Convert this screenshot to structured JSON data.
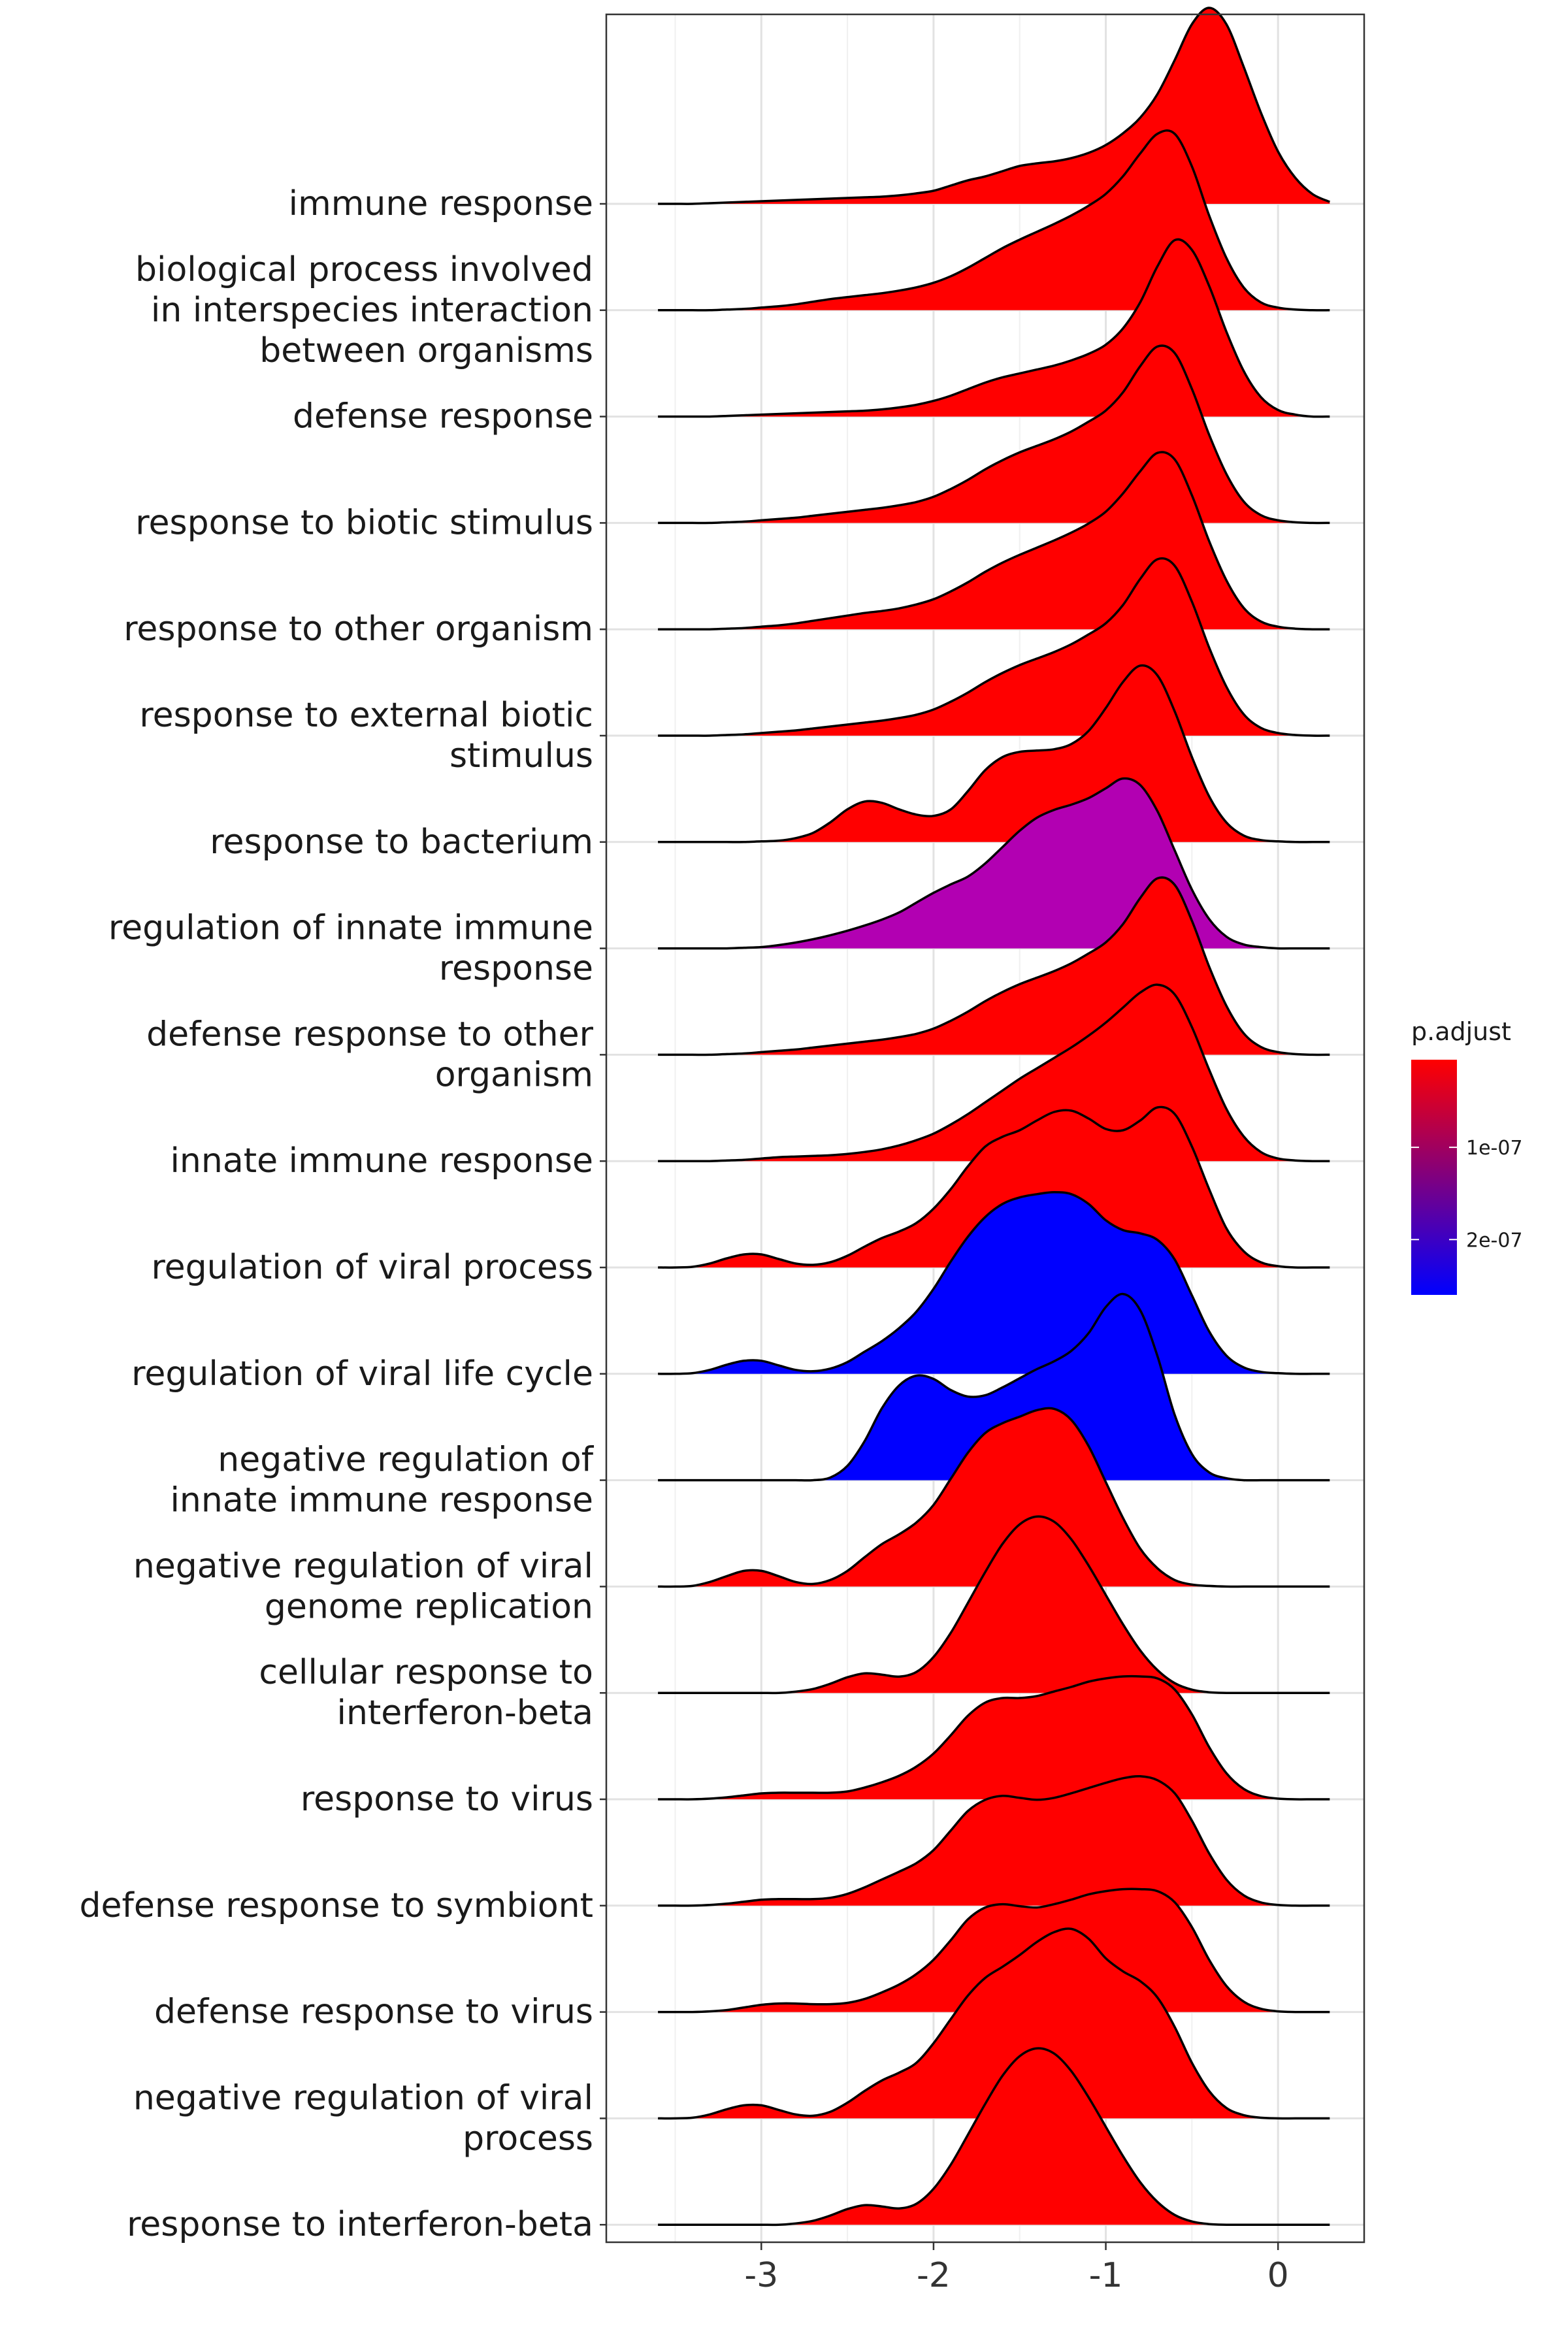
{
  "chart_data": {
    "type": "ridgeline",
    "title": "",
    "xlabel": "",
    "ylabel": "",
    "xlim": [
      -3.9,
      0.5
    ],
    "x_ticks": [
      -3,
      -2,
      -1,
      0
    ],
    "x_tick_labels": [
      "-3",
      "-2",
      "-1",
      "0"
    ],
    "grid": true,
    "legend": {
      "title": "p.adjust",
      "position": "right",
      "type": "gradient",
      "colors": [
        "#FF0000",
        "#0000FF"
      ],
      "ticks": [
        1e-07,
        2e-07
      ],
      "tick_labels": [
        "1e-07",
        "2e-07"
      ],
      "range": [
        5e-09,
        2.6e-07
      ]
    },
    "categories": [
      "immune response",
      "biological process involved\nin interspecies interaction\nbetween organisms",
      "defense response",
      "response to biotic stimulus",
      "response to other organism",
      "response to external biotic\nstimulus",
      "response to bacterium",
      "regulation of innate immune\nresponse",
      "defense response to other\norganism",
      "innate immune response",
      "regulation of viral process",
      "regulation of viral life cycle",
      "negative regulation of\ninnate immune response",
      "negative regulation of viral\ngenome replication",
      "cellular response to\ninterferon-beta",
      "response to virus",
      "defense response to symbiont",
      "defense response to virus",
      "negative regulation of viral\nprocess",
      "response to interferon-beta"
    ],
    "x_grid": [
      -3.6,
      -3.5,
      -3.4,
      -3.3,
      -3.2,
      -3.1,
      -3.0,
      -2.9,
      -2.8,
      -2.7,
      -2.6,
      -2.5,
      -2.4,
      -2.3,
      -2.2,
      -2.1,
      -2.0,
      -1.9,
      -1.8,
      -1.7,
      -1.6,
      -1.5,
      -1.4,
      -1.3,
      -1.2,
      -1.1,
      -1.0,
      -0.9,
      -0.8,
      -0.7,
      -0.6,
      -0.5,
      -0.4,
      -0.3,
      -0.2,
      -0.1,
      0.0,
      0.1,
      0.2,
      0.3
    ],
    "series": [
      {
        "name": "immune response",
        "p_adjust": 1e-08,
        "color": "#FF0000",
        "density": [
          0,
          0,
          0,
          0.01,
          0.02,
          0.03,
          0.04,
          0.05,
          0.06,
          0.07,
          0.08,
          0.09,
          0.1,
          0.11,
          0.13,
          0.16,
          0.2,
          0.28,
          0.36,
          0.42,
          0.5,
          0.58,
          0.62,
          0.65,
          0.7,
          0.78,
          0.9,
          1.08,
          1.32,
          1.68,
          2.2,
          2.75,
          3.0,
          2.75,
          2.1,
          1.4,
          0.8,
          0.4,
          0.15,
          0.03
        ]
      },
      {
        "name": "biological process involved\nin interspecies interaction\nbetween organisms",
        "p_adjust": 1e-08,
        "color": "#FF0000",
        "density": [
          0,
          0,
          0,
          0,
          0.01,
          0.02,
          0.04,
          0.06,
          0.09,
          0.13,
          0.17,
          0.2,
          0.23,
          0.26,
          0.3,
          0.35,
          0.42,
          0.52,
          0.65,
          0.8,
          0.95,
          1.08,
          1.2,
          1.32,
          1.45,
          1.6,
          1.78,
          2.05,
          2.4,
          2.7,
          2.7,
          2.2,
          1.45,
          0.8,
          0.35,
          0.12,
          0.04,
          0.01,
          0,
          0
        ]
      },
      {
        "name": "defense response",
        "p_adjust": 1e-08,
        "color": "#FF0000",
        "density": [
          0,
          0,
          0,
          0,
          0.01,
          0.02,
          0.03,
          0.04,
          0.05,
          0.06,
          0.07,
          0.08,
          0.09,
          0.11,
          0.14,
          0.18,
          0.24,
          0.32,
          0.42,
          0.52,
          0.6,
          0.66,
          0.72,
          0.78,
          0.86,
          0.96,
          1.1,
          1.35,
          1.75,
          2.3,
          2.7,
          2.55,
          2.0,
          1.3,
          0.7,
          0.3,
          0.1,
          0.03,
          0,
          0
        ]
      },
      {
        "name": "response to biotic stimulus",
        "p_adjust": 1e-08,
        "color": "#FF0000",
        "density": [
          0,
          0,
          0,
          0,
          0.01,
          0.02,
          0.04,
          0.06,
          0.08,
          0.11,
          0.14,
          0.17,
          0.2,
          0.23,
          0.27,
          0.32,
          0.4,
          0.52,
          0.66,
          0.82,
          0.96,
          1.08,
          1.18,
          1.28,
          1.4,
          1.55,
          1.72,
          2.0,
          2.4,
          2.7,
          2.6,
          2.05,
          1.35,
          0.75,
          0.33,
          0.12,
          0.04,
          0.01,
          0,
          0
        ]
      },
      {
        "name": "response to other organism",
        "p_adjust": 1e-08,
        "color": "#FF0000",
        "density": [
          0,
          0,
          0,
          0,
          0.01,
          0.02,
          0.04,
          0.06,
          0.09,
          0.13,
          0.17,
          0.21,
          0.25,
          0.28,
          0.32,
          0.38,
          0.46,
          0.58,
          0.72,
          0.88,
          1.02,
          1.14,
          1.25,
          1.36,
          1.48,
          1.62,
          1.8,
          2.08,
          2.42,
          2.7,
          2.6,
          2.05,
          1.35,
          0.75,
          0.33,
          0.12,
          0.04,
          0.01,
          0,
          0
        ]
      },
      {
        "name": "response to external biotic\nstimulus",
        "p_adjust": 1e-08,
        "color": "#FF0000",
        "density": [
          0,
          0,
          0,
          0,
          0.01,
          0.02,
          0.04,
          0.06,
          0.08,
          0.11,
          0.14,
          0.17,
          0.2,
          0.23,
          0.27,
          0.32,
          0.4,
          0.52,
          0.66,
          0.82,
          0.96,
          1.08,
          1.18,
          1.28,
          1.4,
          1.55,
          1.72,
          2.0,
          2.4,
          2.7,
          2.6,
          2.05,
          1.35,
          0.75,
          0.33,
          0.12,
          0.04,
          0.01,
          0,
          0
        ]
      },
      {
        "name": "response to bacterium",
        "p_adjust": 1e-08,
        "color": "#FF0000",
        "density": [
          0,
          0,
          0,
          0,
          0,
          0,
          0.01,
          0.02,
          0.06,
          0.14,
          0.3,
          0.5,
          0.62,
          0.6,
          0.5,
          0.42,
          0.4,
          0.5,
          0.78,
          1.1,
          1.3,
          1.38,
          1.4,
          1.42,
          1.5,
          1.7,
          2.05,
          2.45,
          2.7,
          2.55,
          2.0,
          1.3,
          0.7,
          0.3,
          0.1,
          0.03,
          0.01,
          0,
          0,
          0
        ]
      },
      {
        "name": "regulation of innate immune\nresponse",
        "p_adjust": 1.6e-07,
        "color": "#B200B2",
        "density": [
          0,
          0,
          0,
          0,
          0,
          0.01,
          0.02,
          0.05,
          0.09,
          0.14,
          0.2,
          0.27,
          0.35,
          0.44,
          0.55,
          0.7,
          0.85,
          0.98,
          1.1,
          1.3,
          1.55,
          1.8,
          2.0,
          2.12,
          2.2,
          2.3,
          2.45,
          2.6,
          2.5,
          2.1,
          1.5,
          0.9,
          0.45,
          0.18,
          0.06,
          0.02,
          0,
          0,
          0,
          0
        ]
      },
      {
        "name": "defense response to other\norganism",
        "p_adjust": 1e-08,
        "color": "#FF0000",
        "density": [
          0,
          0,
          0,
          0,
          0.01,
          0.02,
          0.04,
          0.06,
          0.08,
          0.11,
          0.14,
          0.17,
          0.2,
          0.23,
          0.27,
          0.32,
          0.4,
          0.52,
          0.66,
          0.82,
          0.96,
          1.08,
          1.18,
          1.28,
          1.4,
          1.55,
          1.72,
          2.0,
          2.4,
          2.7,
          2.6,
          2.05,
          1.35,
          0.75,
          0.33,
          0.12,
          0.04,
          0.01,
          0,
          0
        ]
      },
      {
        "name": "innate immune response",
        "p_adjust": 1e-08,
        "color": "#FF0000",
        "density": [
          0,
          0,
          0,
          0,
          0.01,
          0.02,
          0.04,
          0.06,
          0.07,
          0.08,
          0.09,
          0.11,
          0.14,
          0.18,
          0.24,
          0.32,
          0.42,
          0.56,
          0.72,
          0.9,
          1.08,
          1.26,
          1.42,
          1.58,
          1.74,
          1.92,
          2.12,
          2.35,
          2.58,
          2.7,
          2.55,
          2.05,
          1.4,
          0.8,
          0.38,
          0.14,
          0.04,
          0.01,
          0,
          0
        ]
      },
      {
        "name": "regulation of viral process",
        "p_adjust": 1e-08,
        "color": "#FF0000",
        "density": [
          0,
          0,
          0.01,
          0.06,
          0.14,
          0.2,
          0.2,
          0.13,
          0.06,
          0.04,
          0.08,
          0.18,
          0.32,
          0.45,
          0.55,
          0.68,
          0.9,
          1.2,
          1.55,
          1.85,
          2.0,
          2.1,
          2.25,
          2.38,
          2.4,
          2.28,
          2.12,
          2.1,
          2.25,
          2.45,
          2.35,
          1.85,
          1.2,
          0.6,
          0.25,
          0.08,
          0.02,
          0,
          0,
          0
        ]
      },
      {
        "name": "regulation of viral life cycle",
        "p_adjust": 2.6e-07,
        "color": "#0000FF",
        "density": [
          0,
          0,
          0.01,
          0.06,
          0.14,
          0.2,
          0.2,
          0.13,
          0.06,
          0.04,
          0.08,
          0.18,
          0.34,
          0.5,
          0.7,
          0.95,
          1.3,
          1.72,
          2.1,
          2.4,
          2.6,
          2.7,
          2.75,
          2.78,
          2.75,
          2.6,
          2.35,
          2.2,
          2.15,
          2.05,
          1.75,
          1.2,
          0.65,
          0.28,
          0.1,
          0.03,
          0.01,
          0,
          0,
          0
        ]
      },
      {
        "name": "negative regulation of\ninnate immune response",
        "p_adjust": 2.6e-07,
        "color": "#0000FF",
        "density": [
          0,
          0,
          0,
          0,
          0,
          0,
          0,
          0,
          0,
          0,
          0.04,
          0.22,
          0.6,
          1.1,
          1.45,
          1.6,
          1.55,
          1.38,
          1.28,
          1.3,
          1.42,
          1.56,
          1.7,
          1.82,
          1.98,
          2.25,
          2.65,
          2.85,
          2.6,
          1.9,
          1.0,
          0.4,
          0.12,
          0.03,
          0,
          0,
          0,
          0,
          0,
          0
        ]
      },
      {
        "name": "negative regulation of viral\ngenome replication",
        "p_adjust": 1e-08,
        "color": "#FF0000",
        "density": [
          0,
          0,
          0.01,
          0.07,
          0.16,
          0.24,
          0.24,
          0.16,
          0.07,
          0.04,
          0.1,
          0.24,
          0.45,
          0.65,
          0.8,
          0.98,
          1.25,
          1.65,
          2.05,
          2.35,
          2.5,
          2.6,
          2.7,
          2.72,
          2.55,
          2.15,
          1.6,
          1.05,
          0.58,
          0.28,
          0.1,
          0.03,
          0.01,
          0,
          0,
          0,
          0,
          0,
          0,
          0
        ]
      },
      {
        "name": "cellular response to\ninterferon-beta",
        "p_adjust": 1e-08,
        "color": "#FF0000",
        "density": [
          0,
          0,
          0,
          0,
          0,
          0,
          0,
          0,
          0.02,
          0.06,
          0.14,
          0.24,
          0.3,
          0.28,
          0.25,
          0.32,
          0.55,
          0.92,
          1.38,
          1.85,
          2.28,
          2.58,
          2.7,
          2.62,
          2.35,
          1.95,
          1.5,
          1.05,
          0.65,
          0.35,
          0.15,
          0.05,
          0.01,
          0,
          0,
          0,
          0,
          0,
          0,
          0
        ]
      },
      {
        "name": "response to virus",
        "p_adjust": 1e-08,
        "color": "#FF0000",
        "density": [
          0,
          0,
          0,
          0.01,
          0.03,
          0.06,
          0.09,
          0.1,
          0.1,
          0.1,
          0.1,
          0.12,
          0.18,
          0.26,
          0.36,
          0.5,
          0.7,
          0.98,
          1.28,
          1.48,
          1.55,
          1.55,
          1.58,
          1.65,
          1.72,
          1.8,
          1.85,
          1.88,
          1.88,
          1.85,
          1.68,
          1.3,
          0.8,
          0.4,
          0.16,
          0.05,
          0.01,
          0,
          0,
          0
        ]
      },
      {
        "name": "defense response to symbiont",
        "p_adjust": 1e-08,
        "color": "#FF0000",
        "density": [
          0,
          0,
          0,
          0.01,
          0.03,
          0.06,
          0.09,
          0.1,
          0.1,
          0.1,
          0.12,
          0.18,
          0.28,
          0.4,
          0.52,
          0.65,
          0.85,
          1.15,
          1.45,
          1.62,
          1.68,
          1.65,
          1.62,
          1.65,
          1.72,
          1.8,
          1.88,
          1.95,
          1.98,
          1.92,
          1.72,
          1.3,
          0.8,
          0.4,
          0.16,
          0.05,
          0.01,
          0,
          0,
          0
        ]
      },
      {
        "name": "defense response to virus",
        "p_adjust": 1e-08,
        "color": "#FF0000",
        "density": [
          0,
          0,
          0,
          0.01,
          0.03,
          0.07,
          0.11,
          0.13,
          0.13,
          0.12,
          0.12,
          0.14,
          0.2,
          0.3,
          0.42,
          0.58,
          0.8,
          1.1,
          1.42,
          1.6,
          1.65,
          1.62,
          1.6,
          1.65,
          1.72,
          1.8,
          1.85,
          1.88,
          1.88,
          1.85,
          1.68,
          1.3,
          0.8,
          0.4,
          0.16,
          0.05,
          0.01,
          0,
          0,
          0
        ]
      },
      {
        "name": "negative regulation of viral\nprocess",
        "p_adjust": 1e-08,
        "color": "#FF0000",
        "density": [
          0,
          0,
          0.01,
          0.06,
          0.14,
          0.2,
          0.2,
          0.13,
          0.06,
          0.04,
          0.1,
          0.24,
          0.42,
          0.58,
          0.7,
          0.85,
          1.15,
          1.52,
          1.88,
          2.15,
          2.32,
          2.5,
          2.7,
          2.85,
          2.9,
          2.75,
          2.45,
          2.25,
          2.1,
          1.85,
          1.4,
          0.85,
          0.42,
          0.16,
          0.05,
          0.01,
          0,
          0,
          0,
          0
        ]
      },
      {
        "name": "response to interferon-beta",
        "p_adjust": 1e-08,
        "color": "#FF0000",
        "density": [
          0,
          0,
          0,
          0,
          0,
          0,
          0,
          0,
          0.02,
          0.06,
          0.14,
          0.24,
          0.3,
          0.28,
          0.25,
          0.32,
          0.55,
          0.92,
          1.38,
          1.85,
          2.28,
          2.58,
          2.7,
          2.62,
          2.35,
          1.95,
          1.5,
          1.05,
          0.65,
          0.35,
          0.15,
          0.05,
          0.01,
          0,
          0,
          0,
          0,
          0,
          0,
          0
        ]
      }
    ]
  }
}
